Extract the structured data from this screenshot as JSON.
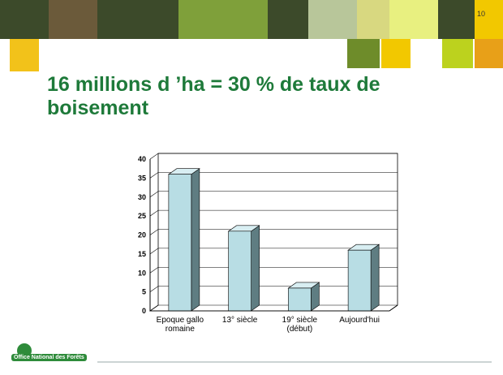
{
  "slide_number": "10",
  "logo": "Office National des Forêts",
  "chart_data": {
    "type": "bar",
    "title": "16 millions d ’ha = 30 % de taux de boisement",
    "categories": [
      "Epoque gallo romaine",
      "13° siècle",
      "19° siècle (début)",
      "Aujourd'hui"
    ],
    "values": [
      36,
      21,
      6,
      16
    ],
    "color": "#b8dde4",
    "ylim": [
      0,
      40
    ],
    "yticks": [
      0,
      5,
      10,
      15,
      20,
      25,
      30,
      35,
      40
    ],
    "grid": true
  }
}
